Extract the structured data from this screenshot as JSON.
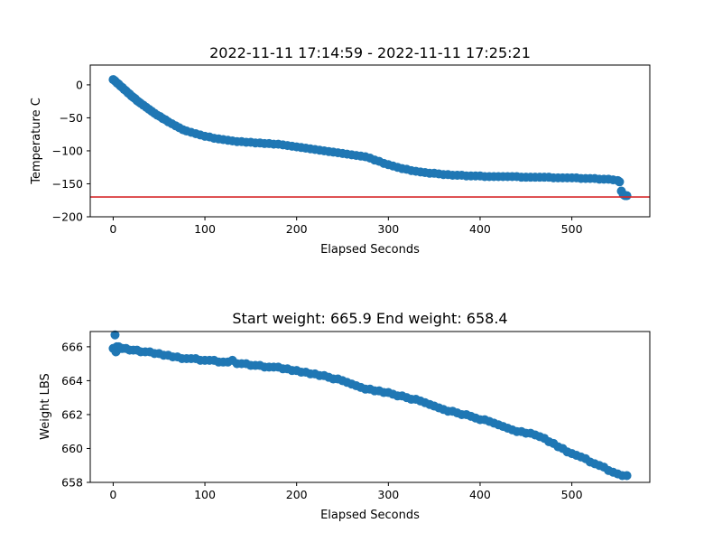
{
  "chart_data": [
    {
      "type": "scatter",
      "title": "2022-11-11 17:14:59 - 2022-11-11 17:25:21",
      "xlabel": "Elapsed Seconds",
      "ylabel": "Temperature C",
      "xlim": [
        -25,
        585
      ],
      "ylim": [
        -200,
        30
      ],
      "xticks": [
        0,
        100,
        200,
        300,
        400,
        500
      ],
      "yticks": [
        0,
        -50,
        -100,
        -150,
        -200
      ],
      "xtick_labels": [
        "0",
        "100",
        "200",
        "300",
        "400",
        "500"
      ],
      "ytick_labels": [
        "0",
        "−50",
        "−100",
        "−150",
        "−200"
      ],
      "reference_line": {
        "y": -170,
        "color": "#d62728"
      },
      "series": [
        {
          "color": "#1f77b4",
          "points": [
            [
              0,
              8
            ],
            [
              2,
              6
            ],
            [
              4,
              3
            ],
            [
              6,
              1
            ],
            [
              8,
              -2
            ],
            [
              10,
              -4
            ],
            [
              12,
              -7
            ],
            [
              14,
              -9
            ],
            [
              16,
              -12
            ],
            [
              18,
              -14
            ],
            [
              20,
              -17
            ],
            [
              22,
              -19
            ],
            [
              24,
              -21
            ],
            [
              26,
              -24
            ],
            [
              28,
              -26
            ],
            [
              30,
              -28
            ],
            [
              33,
              -31
            ],
            [
              36,
              -34
            ],
            [
              39,
              -37
            ],
            [
              42,
              -40
            ],
            [
              45,
              -43
            ],
            [
              48,
              -46
            ],
            [
              51,
              -48
            ],
            [
              54,
              -51
            ],
            [
              57,
              -53
            ],
            [
              60,
              -56
            ],
            [
              64,
              -59
            ],
            [
              68,
              -62
            ],
            [
              72,
              -65
            ],
            [
              76,
              -68
            ],
            [
              80,
              -70
            ],
            [
              85,
              -72
            ],
            [
              90,
              -74
            ],
            [
              95,
              -76
            ],
            [
              100,
              -78
            ],
            [
              105,
              -79
            ],
            [
              110,
              -81
            ],
            [
              115,
              -82
            ],
            [
              120,
              -83
            ],
            [
              125,
              -84
            ],
            [
              130,
              -85
            ],
            [
              135,
              -86
            ],
            [
              140,
              -86
            ],
            [
              145,
              -87
            ],
            [
              150,
              -87
            ],
            [
              155,
              -88
            ],
            [
              160,
              -88
            ],
            [
              165,
              -89
            ],
            [
              170,
              -89
            ],
            [
              175,
              -90
            ],
            [
              180,
              -90
            ],
            [
              185,
              -91
            ],
            [
              190,
              -92
            ],
            [
              195,
              -93
            ],
            [
              200,
              -94
            ],
            [
              205,
              -95
            ],
            [
              210,
              -96
            ],
            [
              215,
              -97
            ],
            [
              220,
              -98
            ],
            [
              225,
              -99
            ],
            [
              230,
              -100
            ],
            [
              235,
              -101
            ],
            [
              240,
              -102
            ],
            [
              245,
              -103
            ],
            [
              250,
              -104
            ],
            [
              255,
              -105
            ],
            [
              260,
              -106
            ],
            [
              265,
              -107
            ],
            [
              270,
              -108
            ],
            [
              275,
              -109
            ],
            [
              280,
              -111
            ],
            [
              285,
              -114
            ],
            [
              290,
              -116
            ],
            [
              295,
              -119
            ],
            [
              300,
              -121
            ],
            [
              305,
              -123
            ],
            [
              310,
              -125
            ],
            [
              315,
              -127
            ],
            [
              320,
              -128
            ],
            [
              325,
              -130
            ],
            [
              330,
              -131
            ],
            [
              335,
              -132
            ],
            [
              340,
              -133
            ],
            [
              345,
              -134
            ],
            [
              350,
              -134
            ],
            [
              355,
              -135
            ],
            [
              360,
              -136
            ],
            [
              365,
              -136
            ],
            [
              370,
              -137
            ],
            [
              375,
              -137
            ],
            [
              380,
              -137
            ],
            [
              385,
              -138
            ],
            [
              390,
              -138
            ],
            [
              395,
              -138
            ],
            [
              400,
              -138
            ],
            [
              405,
              -139
            ],
            [
              410,
              -139
            ],
            [
              415,
              -139
            ],
            [
              420,
              -139
            ],
            [
              425,
              -139
            ],
            [
              430,
              -139
            ],
            [
              435,
              -139
            ],
            [
              440,
              -139
            ],
            [
              445,
              -140
            ],
            [
              450,
              -140
            ],
            [
              455,
              -140
            ],
            [
              460,
              -140
            ],
            [
              465,
              -140
            ],
            [
              470,
              -140
            ],
            [
              475,
              -140
            ],
            [
              480,
              -141
            ],
            [
              485,
              -141
            ],
            [
              490,
              -141
            ],
            [
              495,
              -141
            ],
            [
              500,
              -141
            ],
            [
              505,
              -141
            ],
            [
              510,
              -142
            ],
            [
              515,
              -142
            ],
            [
              520,
              -142
            ],
            [
              525,
              -142
            ],
            [
              530,
              -143
            ],
            [
              535,
              -143
            ],
            [
              540,
              -143
            ],
            [
              545,
              -144
            ],
            [
              550,
              -145
            ],
            [
              552,
              -147
            ],
            [
              554,
              -161
            ],
            [
              556,
              -166
            ],
            [
              558,
              -168
            ],
            [
              560,
              -168
            ]
          ]
        }
      ]
    },
    {
      "type": "scatter",
      "title": "Start weight: 665.9 End weight: 658.4",
      "xlabel": "Elapsed Seconds",
      "ylabel": "Weight LBS",
      "xlim": [
        -25,
        585
      ],
      "ylim": [
        658,
        666.9
      ],
      "xticks": [
        0,
        100,
        200,
        300,
        400,
        500
      ],
      "yticks": [
        658,
        660,
        662,
        664,
        666
      ],
      "xtick_labels": [
        "0",
        "100",
        "200",
        "300",
        "400",
        "500"
      ],
      "ytick_labels": [
        "658",
        "660",
        "662",
        "664",
        "666"
      ],
      "series": [
        {
          "color": "#1f77b4",
          "points": [
            [
              0,
              665.9
            ],
            [
              1,
              665.9
            ],
            [
              2,
              666.7
            ],
            [
              3,
              665.7
            ],
            [
              4,
              666.0
            ],
            [
              6,
              666.0
            ],
            [
              8,
              665.9
            ],
            [
              10,
              665.9
            ],
            [
              14,
              665.9
            ],
            [
              18,
              665.8
            ],
            [
              22,
              665.8
            ],
            [
              26,
              665.8
            ],
            [
              30,
              665.7
            ],
            [
              35,
              665.7
            ],
            [
              40,
              665.7
            ],
            [
              45,
              665.6
            ],
            [
              50,
              665.6
            ],
            [
              55,
              665.5
            ],
            [
              60,
              665.5
            ],
            [
              65,
              665.4
            ],
            [
              70,
              665.4
            ],
            [
              75,
              665.3
            ],
            [
              80,
              665.3
            ],
            [
              85,
              665.3
            ],
            [
              90,
              665.3
            ],
            [
              95,
              665.2
            ],
            [
              100,
              665.2
            ],
            [
              105,
              665.2
            ],
            [
              110,
              665.2
            ],
            [
              115,
              665.1
            ],
            [
              120,
              665.1
            ],
            [
              125,
              665.1
            ],
            [
              130,
              665.2
            ],
            [
              135,
              665.0
            ],
            [
              140,
              665.0
            ],
            [
              145,
              665.0
            ],
            [
              150,
              664.9
            ],
            [
              155,
              664.9
            ],
            [
              160,
              664.9
            ],
            [
              165,
              664.8
            ],
            [
              170,
              664.8
            ],
            [
              175,
              664.8
            ],
            [
              180,
              664.8
            ],
            [
              185,
              664.7
            ],
            [
              190,
              664.7
            ],
            [
              195,
              664.6
            ],
            [
              200,
              664.6
            ],
            [
              205,
              664.5
            ],
            [
              210,
              664.5
            ],
            [
              215,
              664.4
            ],
            [
              220,
              664.4
            ],
            [
              225,
              664.3
            ],
            [
              230,
              664.3
            ],
            [
              235,
              664.2
            ],
            [
              240,
              664.1
            ],
            [
              245,
              664.1
            ],
            [
              250,
              664.0
            ],
            [
              255,
              663.9
            ],
            [
              260,
              663.8
            ],
            [
              265,
              663.7
            ],
            [
              270,
              663.6
            ],
            [
              275,
              663.5
            ],
            [
              280,
              663.5
            ],
            [
              285,
              663.4
            ],
            [
              290,
              663.4
            ],
            [
              295,
              663.3
            ],
            [
              300,
              663.3
            ],
            [
              305,
              663.2
            ],
            [
              310,
              663.1
            ],
            [
              315,
              663.1
            ],
            [
              320,
              663.0
            ],
            [
              325,
              662.9
            ],
            [
              330,
              662.9
            ],
            [
              335,
              662.8
            ],
            [
              340,
              662.7
            ],
            [
              345,
              662.6
            ],
            [
              350,
              662.5
            ],
            [
              355,
              662.4
            ],
            [
              360,
              662.3
            ],
            [
              365,
              662.2
            ],
            [
              370,
              662.2
            ],
            [
              375,
              662.1
            ],
            [
              380,
              662.0
            ],
            [
              385,
              662.0
            ],
            [
              390,
              661.9
            ],
            [
              395,
              661.8
            ],
            [
              400,
              661.7
            ],
            [
              405,
              661.7
            ],
            [
              410,
              661.6
            ],
            [
              415,
              661.5
            ],
            [
              420,
              661.4
            ],
            [
              425,
              661.3
            ],
            [
              430,
              661.2
            ],
            [
              435,
              661.1
            ],
            [
              440,
              661.0
            ],
            [
              445,
              661.0
            ],
            [
              450,
              660.9
            ],
            [
              455,
              660.9
            ],
            [
              460,
              660.8
            ],
            [
              465,
              660.7
            ],
            [
              470,
              660.6
            ],
            [
              475,
              660.4
            ],
            [
              480,
              660.3
            ],
            [
              485,
              660.1
            ],
            [
              490,
              660.0
            ],
            [
              495,
              659.8
            ],
            [
              500,
              659.7
            ],
            [
              505,
              659.6
            ],
            [
              510,
              659.5
            ],
            [
              515,
              659.4
            ],
            [
              520,
              659.2
            ],
            [
              525,
              659.1
            ],
            [
              530,
              659.0
            ],
            [
              535,
              658.9
            ],
            [
              540,
              658.7
            ],
            [
              545,
              658.6
            ],
            [
              550,
              658.5
            ],
            [
              555,
              658.4
            ],
            [
              560,
              658.4
            ]
          ]
        }
      ]
    }
  ]
}
